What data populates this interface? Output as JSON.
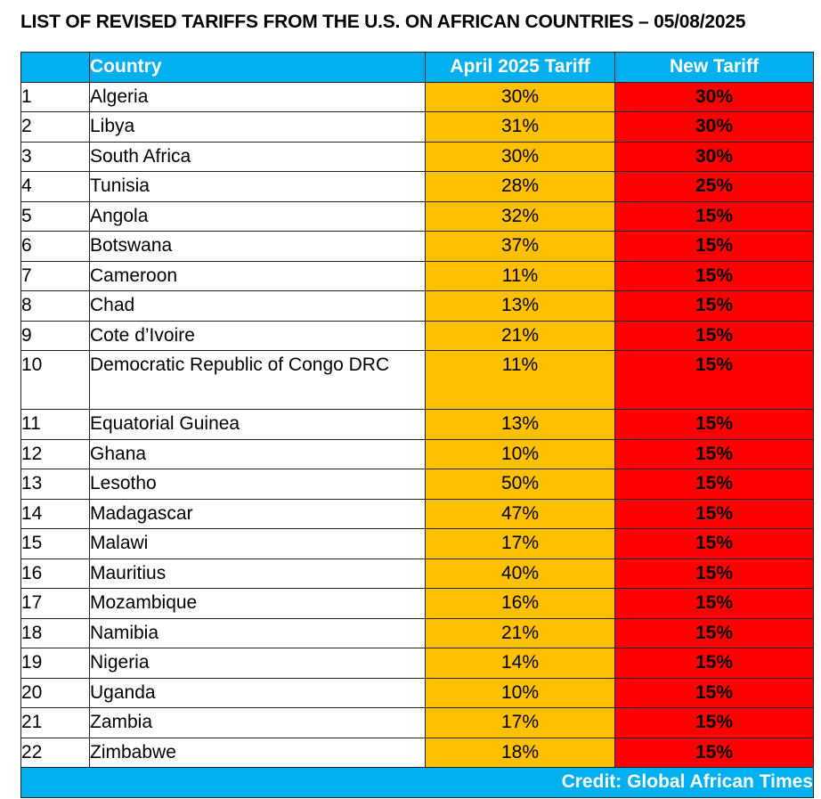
{
  "title": "LIST OF REVISED TARIFFS FROM THE U.S. ON AFRICAN COUNTRIES – 05/08/2025",
  "table": {
    "headers": {
      "number": "",
      "country": "Country",
      "april_tariff": "April 2025 Tariff",
      "new_tariff": "New Tariff"
    },
    "rows": [
      {
        "num": "1",
        "country": "Algeria",
        "april": "30%",
        "new": "30%"
      },
      {
        "num": "2",
        "country": "Libya",
        "april": "31%",
        "new": "30%"
      },
      {
        "num": "3",
        "country": "South Africa",
        "april": "30%",
        "new": "30%"
      },
      {
        "num": "4",
        "country": "Tunisia",
        "april": "28%",
        "new": "25%"
      },
      {
        "num": "5",
        "country": "Angola",
        "april": "32%",
        "new": "15%"
      },
      {
        "num": "6",
        "country": "Botswana",
        "april": "37%",
        "new": "15%"
      },
      {
        "num": "7",
        "country": "Cameroon",
        "april": "11%",
        "new": "15%"
      },
      {
        "num": "8",
        "country": "Chad",
        "april": "13%",
        "new": "15%"
      },
      {
        "num": "9",
        "country": "Cote d’Ivoire",
        "april": "21%",
        "new": "15%"
      },
      {
        "num": "10",
        "country": "Democratic Republic of Congo DRC",
        "april": "11%",
        "new": "15%"
      },
      {
        "num": "11",
        "country": "Equatorial Guinea",
        "april": "13%",
        "new": "15%"
      },
      {
        "num": "12",
        "country": "Ghana",
        "april": "10%",
        "new": "15%"
      },
      {
        "num": "13",
        "country": "Lesotho",
        "april": "50%",
        "new": "15%"
      },
      {
        "num": "14",
        "country": "Madagascar",
        "april": "47%",
        "new": "15%"
      },
      {
        "num": "15",
        "country": "Malawi",
        "april": "17%",
        "new": "15%"
      },
      {
        "num": "16",
        "country": "Mauritius",
        "april": "40%",
        "new": "15%"
      },
      {
        "num": "17",
        "country": "Mozambique",
        "april": "16%",
        "new": "15%"
      },
      {
        "num": "18",
        "country": "Namibia",
        "april": "21%",
        "new": "15%"
      },
      {
        "num": "19",
        "country": "Nigeria",
        "april": "14%",
        "new": "15%"
      },
      {
        "num": "20",
        "country": "Uganda",
        "april": "10%",
        "new": "15%"
      },
      {
        "num": "21",
        "country": "Zambia",
        "april": "17%",
        "new": "15%"
      },
      {
        "num": "22",
        "country": "Zimbabwe",
        "april": "18%",
        "new": "15%"
      }
    ],
    "footer": "Credit:  Global African Times"
  },
  "colors": {
    "header_bg": "#00b0f0",
    "april_bg": "#ffc000",
    "new_bg": "#ff0000"
  }
}
